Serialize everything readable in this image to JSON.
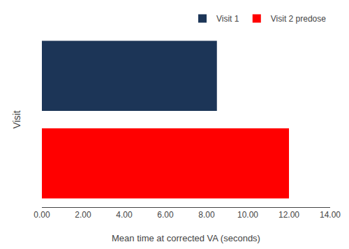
{
  "chart_data": {
    "type": "bar",
    "orientation": "horizontal",
    "categories": [
      "Visit 1",
      "Visit 2 predose"
    ],
    "values": [
      8.5,
      12.0
    ],
    "colors": [
      "#1c3557",
      "#ff0000"
    ],
    "xlabel": "Mean time at corrected VA (seconds)",
    "ylabel": "Visit",
    "xlim": [
      0,
      14.0
    ],
    "xticks": [
      {
        "value": 0.0,
        "label": "0.00"
      },
      {
        "value": 2.0,
        "label": "2.00"
      },
      {
        "value": 4.0,
        "label": "4.00"
      },
      {
        "value": 6.0,
        "label": "6.00"
      },
      {
        "value": 8.0,
        "label": "8.00"
      },
      {
        "value": 10.0,
        "label": "10.00"
      },
      {
        "value": 12.0,
        "label": "12.00"
      },
      {
        "value": 14.0,
        "label": "14.00"
      }
    ],
    "tick_labels": "x",
    "grid": false,
    "legend": "upper right"
  }
}
